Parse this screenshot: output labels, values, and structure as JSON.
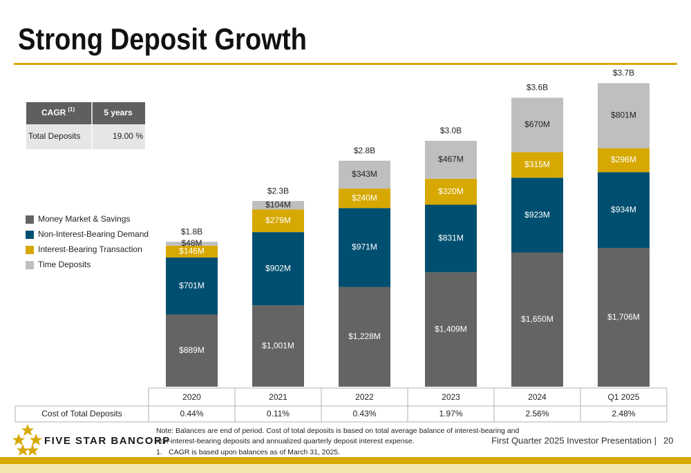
{
  "title": "Strong Deposit Growth",
  "chart_data": {
    "type": "bar",
    "stacked": true,
    "categories": [
      "2020",
      "2021",
      "2022",
      "2023",
      "2024",
      "Q1 2025"
    ],
    "series": [
      {
        "name": "Money Market & Savings",
        "color": "#646464",
        "values": [
          889,
          1001,
          1228,
          1409,
          1650,
          1706
        ],
        "value_labels": [
          "$889M",
          "$1,001M",
          "$1,228M",
          "$1,409M",
          "$1,650M",
          "$1,706M"
        ]
      },
      {
        "name": "Non-Interest-Bearing Demand",
        "color": "#004f71",
        "values": [
          701,
          902,
          971,
          831,
          923,
          934
        ],
        "value_labels": [
          "$701M",
          "$902M",
          "$971M",
          "$831M",
          "$923M",
          "$934M"
        ]
      },
      {
        "name": "Interest-Bearing Transaction",
        "color": "#d6a800",
        "values": [
          146,
          279,
          240,
          320,
          315,
          296
        ],
        "value_labels": [
          "$146M",
          "$279M",
          "$240M",
          "$320M",
          "$315M",
          "$296M"
        ]
      },
      {
        "name": "Time Deposits",
        "color": "#bfbfbf",
        "values": [
          48,
          104,
          343,
          467,
          670,
          801
        ],
        "value_labels": [
          "$48M",
          "$104M",
          "$343M",
          "$467M",
          "$670M",
          "$801M"
        ]
      }
    ],
    "totals": {
      "values": [
        1784,
        2286,
        2782,
        3027,
        3558,
        3737
      ],
      "value_labels": [
        "$1.8B",
        "$2.3B",
        "$2.8B",
        "$3.0B",
        "$3.6B",
        "$3.7B"
      ]
    },
    "ylim": [
      0,
      3800
    ]
  },
  "cagr_table": {
    "header": [
      "CAGR",
      "5 years"
    ],
    "header_note": "(1)",
    "rows": [
      [
        "Total Deposits",
        "19.00 %"
      ]
    ]
  },
  "cost_table": {
    "label": "Cost of Total Deposits",
    "values": [
      "0.44%",
      "0.11%",
      "0.43%",
      "1.97%",
      "2.56%",
      "2.48%"
    ]
  },
  "logo": "FIVE STAR BANCORP",
  "notes": {
    "text": [
      "Note: Balances are end of period. Cost of total deposits is based on total average balance of interest-bearing and",
      "non-interest-bearing deposits and annualized quarterly deposit interest expense."
    ],
    "footnote_marker": "1.",
    "footnote": "CAGR is based upon balances as of March 31, 2025."
  },
  "footer": "First Quarter 2025 Investor Presentation |",
  "page": "20"
}
